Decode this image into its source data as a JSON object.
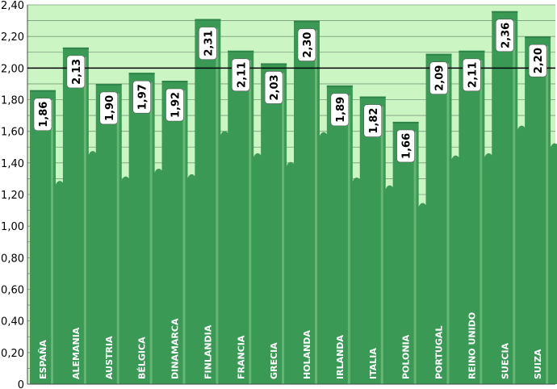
{
  "chart_data": {
    "type": "bar",
    "categories": [
      "ESPAÑA",
      "ALEMANIA",
      "AUSTRIA",
      "BÉLGICA",
      "DINAMARCA",
      "FINLANDIA",
      "FRANCIA",
      "GRECIA",
      "HOLANDA",
      "IRLANDA",
      "ITALIA",
      "POLONIA",
      "PORTUGAL",
      "REINO UNIDO",
      "SUECIA",
      "SUIZA"
    ],
    "values": [
      1.86,
      2.13,
      1.9,
      1.97,
      1.92,
      2.31,
      2.11,
      2.03,
      2.3,
      1.89,
      1.82,
      1.66,
      2.09,
      2.11,
      2.36,
      2.2
    ],
    "value_labels": [
      "1,86",
      "2,13",
      "1,90",
      "1,97",
      "1,92",
      "2,31",
      "2,11",
      "2,03",
      "2,30",
      "1,89",
      "1,82",
      "1,66",
      "2,09",
      "2,11",
      "2,36",
      "2,20"
    ],
    "y_ticks": [
      0,
      0.2,
      0.4,
      0.6,
      0.8,
      1.0,
      1.2,
      1.4,
      1.6,
      1.8,
      2.0,
      2.2,
      2.4
    ],
    "y_tick_labels": [
      "0",
      "0,20",
      "0,40",
      "0,60",
      "0,80",
      "1,00",
      "1,20",
      "1,40",
      "1,60",
      "1,80",
      "2,00",
      "2,20",
      "2,40"
    ],
    "reference_line": 2.0,
    "ylim": [
      0,
      2.4
    ],
    "title": "",
    "xlabel": "",
    "ylabel": "",
    "grid": true,
    "legend": "none",
    "colors": {
      "plot_background": "#ccf5c4",
      "bar": "#3a9a55",
      "bar_dark": "#2f8449",
      "bar_wave": "#8dd28f",
      "grid": "#7a9a78",
      "reference_line": "#000000",
      "value_box": "#ffffff",
      "category_text": "#ffffff"
    }
  }
}
